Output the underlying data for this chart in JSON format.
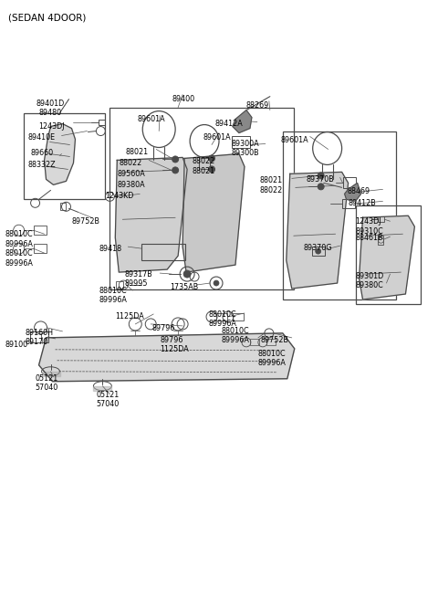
{
  "title": "(SEDAN 4DOOR)",
  "bg_color": "#ffffff",
  "lc": "#4a4a4a",
  "tc": "#000000",
  "fig_w": 4.8,
  "fig_h": 6.56,
  "dpi": 100,
  "labels": [
    [
      "89401D\n89480",
      55,
      108,
      "center"
    ],
    [
      "1243DJ",
      42,
      133,
      "left"
    ],
    [
      "89410E",
      30,
      145,
      "left"
    ],
    [
      "89660",
      33,
      163,
      "left"
    ],
    [
      "88332Z",
      30,
      176,
      "left"
    ],
    [
      "89752B",
      78,
      238,
      "left"
    ],
    [
      "88010C\n89996A",
      5,
      252,
      "left"
    ],
    [
      "88010C\n89996A",
      5,
      273,
      "left"
    ],
    [
      "89400",
      188,
      103,
      "left"
    ],
    [
      "89601A",
      150,
      125,
      "left"
    ],
    [
      "89601A",
      222,
      145,
      "left"
    ],
    [
      "88021",
      137,
      162,
      "left"
    ],
    [
      "88022",
      130,
      174,
      "left"
    ],
    [
      "89560A",
      128,
      186,
      "left"
    ],
    [
      "89380A",
      128,
      198,
      "left"
    ],
    [
      "88022\n88021",
      210,
      172,
      "left"
    ],
    [
      "1243KD",
      115,
      210,
      "left"
    ],
    [
      "89418",
      108,
      268,
      "left"
    ],
    [
      "89317B\n89995",
      136,
      296,
      "left"
    ],
    [
      "88010C\n89996A",
      108,
      314,
      "left"
    ],
    [
      "1735AB",
      186,
      310,
      "left"
    ],
    [
      "88269",
      270,
      110,
      "left"
    ],
    [
      "89412A",
      235,
      130,
      "left"
    ],
    [
      "89300A\n89300B",
      254,
      152,
      "left"
    ],
    [
      "89601A",
      308,
      148,
      "left"
    ],
    [
      "88021\n88022",
      285,
      193,
      "left"
    ],
    [
      "89370B",
      336,
      192,
      "left"
    ],
    [
      "89370G",
      333,
      267,
      "left"
    ],
    [
      "88469",
      381,
      205,
      "left"
    ],
    [
      "89412B",
      382,
      218,
      "left"
    ],
    [
      "1243DJ\n89310C",
      390,
      238,
      "left"
    ],
    [
      "88461B",
      390,
      256,
      "left"
    ],
    [
      "89301D\n89380C",
      390,
      298,
      "left"
    ],
    [
      "1125DA",
      126,
      342,
      "left"
    ],
    [
      "89796",
      166,
      355,
      "left"
    ],
    [
      "89796\n1125DA",
      175,
      368,
      "left"
    ],
    [
      "88010C\n89996A",
      228,
      340,
      "left"
    ],
    [
      "88010C\n89996A",
      243,
      358,
      "left"
    ],
    [
      "89752B",
      286,
      368,
      "left"
    ],
    [
      "88010C\n89996A",
      283,
      383,
      "left"
    ],
    [
      "89160H\n89170",
      27,
      360,
      "left"
    ],
    [
      "89100",
      5,
      373,
      "left"
    ],
    [
      "05121\n57040",
      38,
      410,
      "left"
    ],
    [
      "05121\n57040",
      105,
      428,
      "left"
    ]
  ]
}
